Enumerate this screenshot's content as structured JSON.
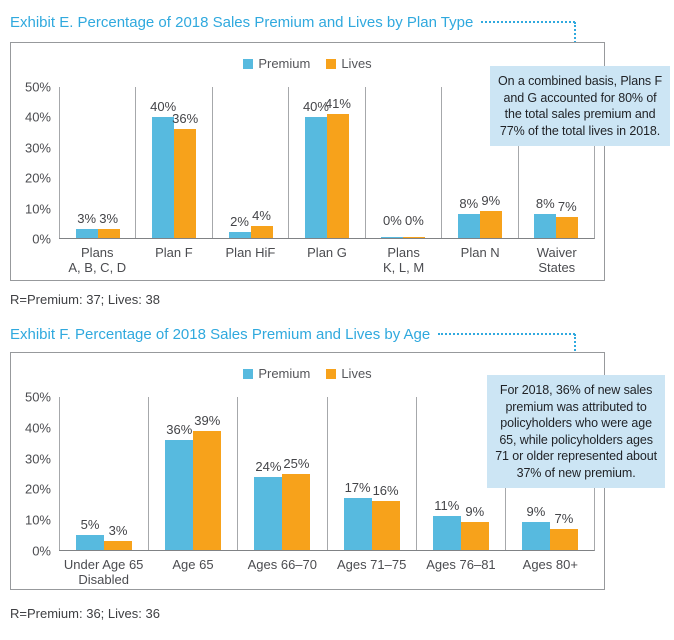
{
  "page": {
    "background": "#ffffff"
  },
  "colors": {
    "premium_blue": "#57BADF",
    "lives_orange": "#F7A21B",
    "title_blue": "#30A9DE",
    "connector_dot_blue": "#41B0E4",
    "callout_bg": "#CCE5F4",
    "callout_text": "#1F2125",
    "axis_text": "#4B4C50",
    "frame_border": "#97999C"
  },
  "chart_data": [
    {
      "type": "bar",
      "exhibit": "E",
      "title": "Exhibit E. Percentage of 2018 Sales Premium and Lives by Plan Type",
      "categories": [
        "Plans\nA, B, C, D",
        "Plan F",
        "Plan HiF",
        "Plan G",
        "Plans\nK, L, M",
        "Plan N",
        "Waiver\nStates"
      ],
      "series": [
        {
          "name": "Premium",
          "color": "#57BADF",
          "values": [
            3,
            40,
            2,
            40,
            0,
            8,
            8
          ]
        },
        {
          "name": "Lives",
          "color": "#F7A21B",
          "values": [
            3,
            36,
            4,
            41,
            0,
            9,
            7
          ]
        }
      ],
      "value_suffix": "%",
      "ylim": [
        0,
        50
      ],
      "y_ticks": [
        "50%",
        "40%",
        "30%",
        "20%",
        "10%",
        "0%"
      ],
      "xlabel": "",
      "ylabel": "",
      "grid": "vertical category separators, no horizontal gridlines",
      "legend_position": "top-center",
      "callout": "On a combined basis, Plans F\nand G accounted for 80% of\nthe total sales premium and\n77% of the total lives in 2018.",
      "footnote": "R=Premium: 37; Lives: 38"
    },
    {
      "type": "bar",
      "exhibit": "F",
      "title": "Exhibit F. Percentage of 2018 Sales Premium and Lives by Age",
      "categories": [
        "Under Age 65\nDisabled",
        "Age 65",
        "Ages 66–70",
        "Ages 71–75",
        "Ages 76–81",
        "Ages 80+"
      ],
      "series": [
        {
          "name": "Premium",
          "color": "#57BADF",
          "values": [
            5,
            36,
            24,
            17,
            11,
            9
          ]
        },
        {
          "name": "Lives",
          "color": "#F7A21B",
          "values": [
            3,
            39,
            25,
            16,
            9,
            7
          ]
        }
      ],
      "value_suffix": "%",
      "ylim": [
        0,
        50
      ],
      "y_ticks": [
        "50%",
        "40%",
        "30%",
        "20%",
        "10%",
        "0%"
      ],
      "xlabel": "",
      "ylabel": "",
      "grid": "vertical category separators, no horizontal gridlines",
      "legend_position": "top-center",
      "callout": "For 2018, 36% of new sales\npremium was attributed to\npolicyholders who were age\n65, while policyholders ages\n71 or older represented about\n37% of new premium.",
      "footnote": "R=Premium: 36; Lives: 36"
    }
  ]
}
